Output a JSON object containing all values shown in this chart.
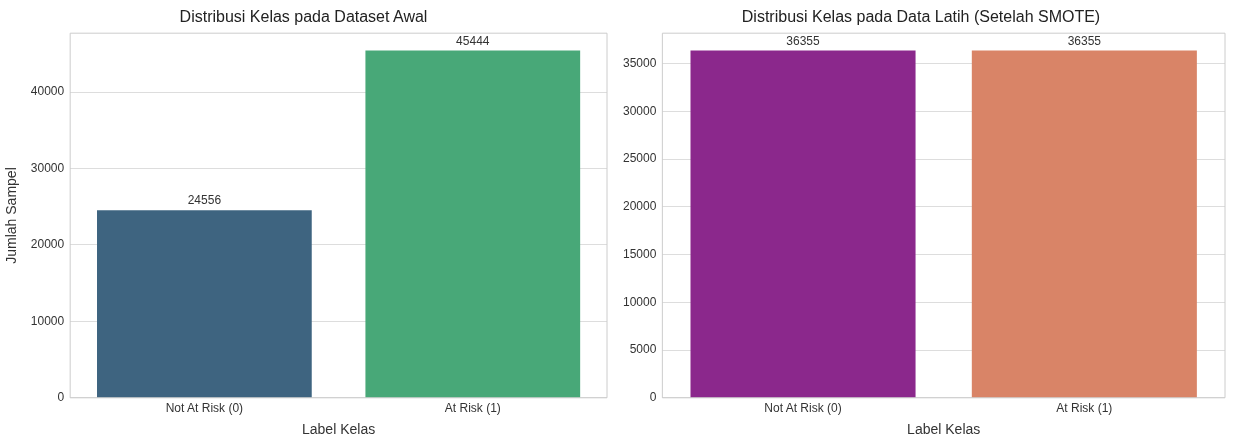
{
  "chart_data": [
    {
      "type": "bar",
      "title": "Distribusi Kelas pada Dataset Awal",
      "xlabel": "Label Kelas",
      "ylabel": "Jumlah Sampel",
      "categories": [
        "Not At Risk (0)",
        "At Risk (1)"
      ],
      "values": [
        24556,
        45444
      ],
      "colors": [
        "#3e6480",
        "#48a878"
      ],
      "ylim": [
        0,
        47716
      ],
      "yticks": [
        0,
        10000,
        20000,
        30000,
        40000
      ],
      "grid": "y",
      "data_labels": true
    },
    {
      "type": "bar",
      "title": "Distribusi Kelas pada Data Latih (Setelah SMOTE)",
      "xlabel": "Label Kelas",
      "categories": [
        "Not At Risk (0)",
        "At Risk (1)"
      ],
      "values": [
        36355,
        36355
      ],
      "colors": [
        "#8b288c",
        "#d98467"
      ],
      "ylim": [
        0,
        38173
      ],
      "yticks": [
        0,
        5000,
        10000,
        15000,
        20000,
        25000,
        30000,
        35000
      ],
      "grid": "y",
      "data_labels": true
    }
  ]
}
